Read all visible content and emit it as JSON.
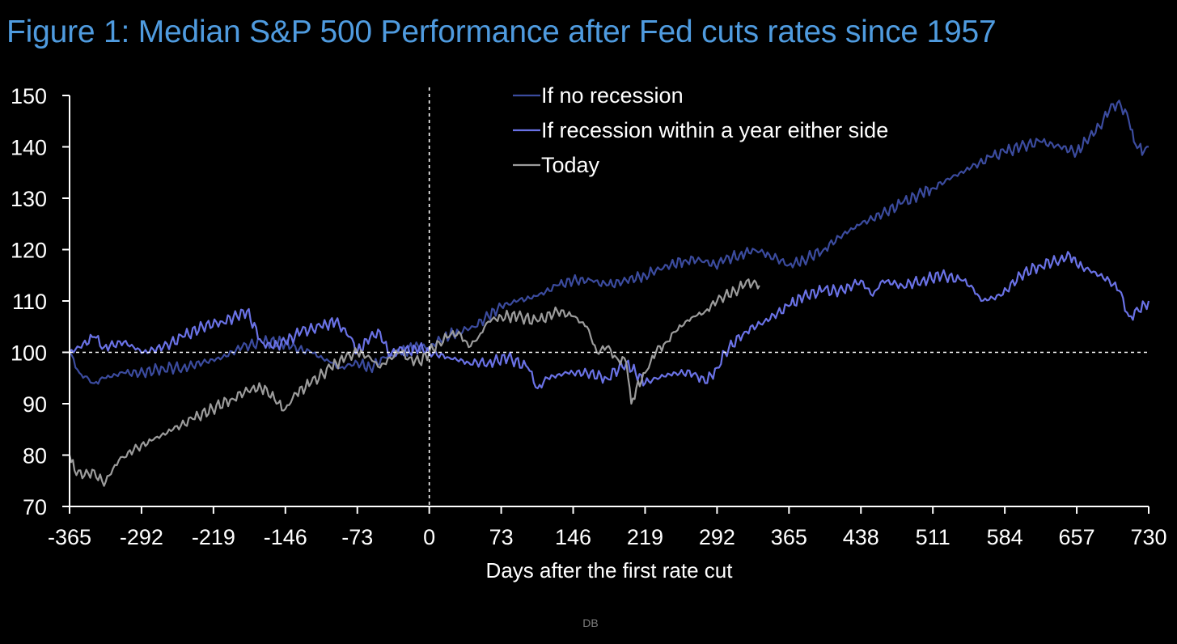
{
  "page": {
    "title": "Figure 1: Median S&P 500 Performance after Fed cuts rates since 1957",
    "source": "DB"
  },
  "colors": {
    "background": "#000000",
    "title": "#4f9bdf",
    "axis": "#ffffff",
    "text": "#ffffff",
    "no_recession": "#3b4b9e",
    "recession": "#6a72e6",
    "today": "#9c9c9c"
  },
  "chart_data": {
    "type": "line",
    "title": "Figure 1: Median S&P 500 Performance after Fed cuts rates since 1957",
    "xlabel": "Days after the first rate cut",
    "ylabel": "",
    "xlim": [
      -365,
      730
    ],
    "ylim": [
      70,
      150
    ],
    "xticks": [
      -365,
      -292,
      -219,
      -146,
      -73,
      0,
      73,
      146,
      219,
      292,
      365,
      438,
      511,
      584,
      657,
      730
    ],
    "yticks": [
      70,
      80,
      90,
      100,
      110,
      120,
      130,
      140,
      150
    ],
    "grid": false,
    "legend_position": "top-center",
    "reference_lines": {
      "horizontal": 100,
      "vertical": 0
    },
    "series": [
      {
        "name": "If no recession",
        "color": "#3b4b9e",
        "x": [
          -365,
          -355,
          -340,
          -330,
          -310,
          -290,
          -270,
          -250,
          -230,
          -210,
          -190,
          -170,
          -150,
          -140,
          -120,
          -100,
          -90,
          -73,
          -60,
          -45,
          -30,
          -15,
          0,
          15,
          30,
          45,
          60,
          73,
          90,
          110,
          130,
          146,
          165,
          180,
          200,
          219,
          230,
          245,
          260,
          275,
          290,
          300,
          315,
          330,
          345,
          365,
          380,
          400,
          420,
          438,
          460,
          480,
          500,
          511,
          530,
          550,
          570,
          584,
          600,
          620,
          640,
          657,
          670,
          680,
          690,
          700,
          710,
          715,
          720,
          725,
          730
        ],
        "y": [
          100,
          96,
          94,
          95,
          96,
          96,
          97,
          97,
          98,
          99,
          101,
          102,
          102,
          101,
          100,
          98,
          97,
          98,
          97,
          99,
          100,
          101,
          101,
          103,
          104,
          105,
          107,
          109,
          110,
          111,
          113,
          114,
          114,
          113,
          114,
          115,
          116,
          117,
          118,
          118,
          117,
          118,
          119,
          120,
          119,
          117,
          118,
          120,
          123,
          125,
          127,
          129,
          131,
          132,
          134,
          136,
          138,
          139,
          140,
          141,
          140,
          139,
          142,
          144,
          147,
          149,
          145,
          141,
          140,
          139,
          140
        ]
      },
      {
        "name": "If recession within a year either side",
        "color": "#6a72e6",
        "x": [
          -365,
          -355,
          -340,
          -330,
          -310,
          -290,
          -270,
          -250,
          -230,
          -210,
          -195,
          -185,
          -170,
          -160,
          -146,
          -130,
          -110,
          -95,
          -80,
          -73,
          -60,
          -50,
          -40,
          -30,
          -20,
          -10,
          0,
          20,
          40,
          60,
          80,
          100,
          110,
          120,
          140,
          160,
          180,
          200,
          219,
          230,
          250,
          270,
          280,
          292,
          300,
          320,
          340,
          365,
          380,
          400,
          420,
          438,
          450,
          460,
          480,
          500,
          520,
          540,
          550,
          560,
          580,
          600,
          620,
          640,
          650,
          657,
          670,
          690,
          700,
          710,
          720,
          730
        ],
        "y": [
          100,
          101,
          103,
          101,
          102,
          100,
          101,
          103,
          105,
          106,
          107,
          108,
          102,
          101,
          102,
          104,
          105,
          106,
          103,
          100,
          103,
          104,
          99,
          101,
          100,
          101,
          100,
          99,
          98,
          98,
          99,
          97,
          93,
          95,
          96,
          96,
          95,
          98,
          94,
          95,
          96,
          96,
          94,
          97,
          100,
          104,
          106,
          109,
          111,
          112,
          112,
          114,
          111,
          114,
          113,
          114,
          115,
          114,
          113,
          110,
          111,
          115,
          117,
          118,
          119,
          117,
          116,
          114,
          112,
          107,
          108,
          110
        ]
      },
      {
        "name": "Today",
        "color": "#9c9c9c",
        "x": [
          -365,
          -360,
          -350,
          -340,
          -330,
          -325,
          -315,
          -300,
          -280,
          -260,
          -240,
          -220,
          -200,
          -180,
          -165,
          -155,
          -146,
          -135,
          -120,
          -100,
          -85,
          -73,
          -60,
          -50,
          -40,
          -30,
          -20,
          -10,
          0,
          10,
          20,
          30,
          40,
          50,
          60,
          73,
          90,
          110,
          130,
          146,
          160,
          170,
          180,
          190,
          200,
          205,
          210,
          219,
          230,
          240,
          250,
          260,
          270,
          280,
          292,
          300,
          310,
          320,
          330,
          335
        ],
        "y": [
          80,
          77,
          76,
          77,
          74,
          76,
          79,
          81,
          83,
          85,
          87,
          89,
          91,
          93,
          93,
          90,
          89,
          92,
          94,
          97,
          99,
          100,
          99,
          97,
          99,
          100,
          99,
          98,
          100,
          102,
          103,
          104,
          101,
          103,
          106,
          107,
          107,
          106,
          108,
          107,
          105,
          100,
          101,
          99,
          98,
          90,
          93,
          96,
          100,
          102,
          104,
          106,
          107,
          108,
          110,
          111,
          112,
          113,
          114,
          113
        ]
      }
    ]
  }
}
